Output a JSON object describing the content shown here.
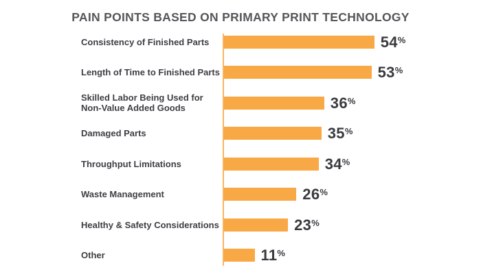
{
  "title": "PAIN POINTS BASED ON PRIMARY PRINT TECHNOLOGY",
  "colors": {
    "bar": "#F8A844",
    "axis_line": "#F9B55E",
    "title_text": "#55565A",
    "label_text": "#3D3E43",
    "value_text": "#393A3F",
    "background": "#FFFFFF"
  },
  "chart_data": {
    "type": "bar",
    "orientation": "horizontal",
    "title": "PAIN POINTS BASED ON PRIMARY PRINT TECHNOLOGY",
    "categories": [
      "Consistency of Finished Parts",
      "Length of Time to Finished Parts",
      "Skilled Labor Being Used for\nNon-Value Added Goods",
      "Damaged Parts",
      "Throughput Limitations",
      "Waste Management",
      "Healthy & Safety Considerations",
      "Other"
    ],
    "values": [
      54,
      53,
      36,
      35,
      34,
      26,
      23,
      11
    ],
    "unit": "%",
    "value_labels": [
      "54%",
      "53%",
      "36%",
      "35%",
      "34%",
      "26%",
      "23%",
      "11%"
    ],
    "xlabel": "",
    "ylabel": "",
    "xlim": [
      0,
      60
    ],
    "grid": false,
    "legend": false,
    "bar_color": "#F8A844"
  }
}
